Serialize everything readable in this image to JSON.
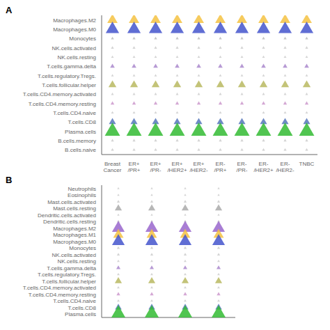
{
  "chart_data": [
    {
      "type": "bubble",
      "title": "A",
      "categories": [
        "Breast\nCancer",
        "ER+\n/PR+",
        "ER+\n/PR-",
        "ER+\n/HER2+",
        "ER+\n/HER2-",
        "ER-\n/PR+",
        "ER-\n/PR-",
        "ER-\n/HER2+",
        "ER-\n/HER2-",
        "TNBC"
      ],
      "rows": [
        {
          "name": "Macrophages.M2",
          "color": "#f5c242",
          "sizes": [
            60,
            60,
            60,
            60,
            60,
            60,
            60,
            60,
            60,
            60
          ]
        },
        {
          "name": "Macrophages.M0",
          "color": "#4455cc",
          "sizes": [
            100,
            100,
            100,
            100,
            100,
            100,
            100,
            100,
            100,
            100
          ]
        },
        {
          "name": "Monocytes",
          "color": "#bbbbbb",
          "sizes": [
            5,
            5,
            5,
            5,
            5,
            5,
            5,
            5,
            5,
            5
          ]
        },
        {
          "name": "NK.cells.activated",
          "color": "#cccccc",
          "sizes": [
            5,
            5,
            5,
            5,
            5,
            5,
            5,
            5,
            5,
            5
          ]
        },
        {
          "name": "NK.cells.resting",
          "color": "#cccccc",
          "sizes": [
            4,
            4,
            4,
            4,
            4,
            4,
            4,
            4,
            4,
            4
          ]
        },
        {
          "name": "T.cells.gamma.delta",
          "color": "#aa88cc",
          "sizes": [
            12,
            12,
            12,
            12,
            12,
            12,
            12,
            12,
            12,
            12
          ]
        },
        {
          "name": "T.cells.regulatory.Tregs.",
          "color": "#cccccc",
          "sizes": [
            4,
            4,
            4,
            4,
            4,
            4,
            4,
            4,
            4,
            4
          ]
        },
        {
          "name": "T.cells.follicular.helper",
          "color": "#b8b860",
          "sizes": [
            35,
            35,
            35,
            35,
            35,
            35,
            35,
            35,
            35,
            35
          ]
        },
        {
          "name": "T.cells.CD4.memory.activated",
          "color": "#cccccc",
          "sizes": [
            4,
            4,
            4,
            4,
            4,
            4,
            4,
            4,
            4,
            4
          ]
        },
        {
          "name": "T.cells.CD4.memory.resting",
          "color": "#cc99cc",
          "sizes": [
            8,
            8,
            8,
            8,
            8,
            8,
            8,
            8,
            8,
            8
          ]
        },
        {
          "name": "T.cells.CD4.naive",
          "color": "#cccccc",
          "sizes": [
            4,
            4,
            4,
            4,
            4,
            4,
            4,
            4,
            4,
            4
          ]
        },
        {
          "name": "T.cells.CD8",
          "color": "#5577bb",
          "sizes": [
            28,
            28,
            28,
            28,
            28,
            28,
            28,
            28,
            28,
            28
          ]
        },
        {
          "name": "Plasma.cells",
          "color": "#33bb33",
          "sizes": [
            130,
            130,
            130,
            130,
            130,
            130,
            130,
            130,
            130,
            130
          ]
        },
        {
          "name": "B.cells.memory",
          "color": "#cccccc",
          "sizes": [
            5,
            5,
            5,
            5,
            5,
            5,
            5,
            5,
            5,
            5
          ]
        },
        {
          "name": "B.cells.naive",
          "color": "#cccccc",
          "sizes": [
            5,
            5,
            5,
            5,
            5,
            5,
            5,
            5,
            5,
            5
          ]
        }
      ]
    },
    {
      "type": "bubble",
      "title": "B",
      "categories": [
        null,
        null,
        null,
        null
      ],
      "tick_labels": "y",
      "rows": [
        {
          "name": "Neutrophils",
          "color": "#cccccc",
          "sizes": [
            3,
            3,
            3,
            3
          ]
        },
        {
          "name": "Eosinophils",
          "color": "#cccccc",
          "sizes": [
            3,
            3,
            3,
            3
          ]
        },
        {
          "name": "Mast.cells.activated",
          "color": "#cccccc",
          "sizes": [
            5,
            5,
            5,
            5
          ]
        },
        {
          "name": "Mast.cells.resting",
          "color": "#aaaaaa",
          "sizes": [
            28,
            28,
            28,
            28
          ]
        },
        {
          "name": "Dendritic.cells.activated",
          "color": "#cccccc",
          "sizes": [
            3,
            3,
            3,
            3
          ]
        },
        {
          "name": "Dendritic.cells.resting",
          "color": "#cccccc",
          "sizes": [
            5,
            5,
            5,
            5
          ]
        },
        {
          "name": "Macrophages.M2",
          "color": "#9966cc",
          "sizes": [
            90,
            90,
            90,
            90
          ]
        },
        {
          "name": "Macrophages.M1",
          "color": "#f5c242",
          "sizes": [
            60,
            60,
            60,
            60
          ]
        },
        {
          "name": "Macrophages.M0",
          "color": "#4455cc",
          "sizes": [
            90,
            90,
            90,
            90
          ]
        },
        {
          "name": "Monocytes",
          "color": "#cccccc",
          "sizes": [
            5,
            5,
            5,
            5
          ]
        },
        {
          "name": "NK.cells.activated",
          "color": "#cccccc",
          "sizes": [
            5,
            5,
            5,
            5
          ]
        },
        {
          "name": "NK.cells.resting",
          "color": "#cccccc",
          "sizes": [
            4,
            4,
            4,
            4
          ]
        },
        {
          "name": "T.cells.gamma.delta",
          "color": "#aa88cc",
          "sizes": [
            10,
            10,
            10,
            10
          ]
        },
        {
          "name": "T.cells.regulatory.Tregs.",
          "color": "#cccccc",
          "sizes": [
            4,
            4,
            4,
            4
          ]
        },
        {
          "name": "T.cells.follicular.helper",
          "color": "#b8b860",
          "sizes": [
            28,
            28,
            28,
            28
          ]
        },
        {
          "name": "T.cells.CD4.memory.activated",
          "color": "#cccccc",
          "sizes": [
            4,
            4,
            4,
            4
          ]
        },
        {
          "name": "T.cells.CD4.memory.resting",
          "color": "#cc99cc",
          "sizes": [
            8,
            8,
            8,
            8
          ]
        },
        {
          "name": "T.cells.CD4.naive",
          "color": "#cccccc",
          "sizes": [
            4,
            4,
            4,
            4
          ]
        },
        {
          "name": "T.cells.CD8",
          "color": "#5577bb",
          "sizes": [
            24,
            24,
            24,
            24
          ]
        },
        {
          "name": "Plasma.cells",
          "color": "#33bb33",
          "sizes": [
            130,
            130,
            130,
            130
          ]
        }
      ]
    }
  ]
}
